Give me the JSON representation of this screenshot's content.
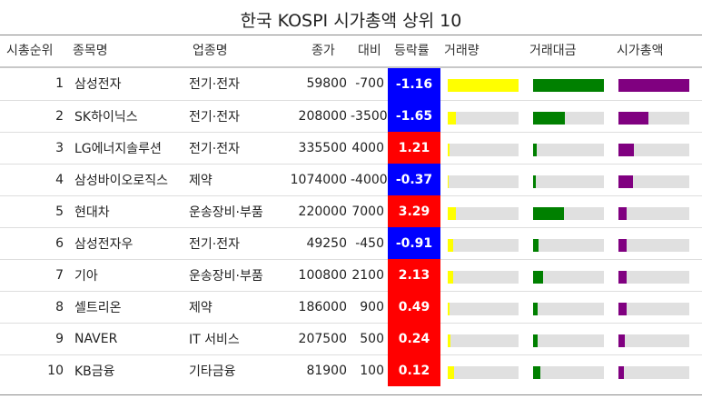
{
  "chart_data": {
    "type": "table",
    "title": "한국 KOSPI 시가총액 상위 10",
    "columns": [
      "시총순위",
      "종목명",
      "업종명",
      "종가",
      "대비",
      "등락률",
      "거래량",
      "거래대금",
      "시가총액"
    ],
    "rows": [
      {
        "rank": "1",
        "name": "삼성전자",
        "sector": "전기·전자",
        "close": "59800",
        "change": "-700",
        "rate": "-1.16",
        "volume": 1.0,
        "value": 1.0,
        "cap": 1.0
      },
      {
        "rank": "2",
        "name": "SK하이닉스",
        "sector": "전기·전자",
        "close": "208000",
        "change": "-3500",
        "rate": "-1.65",
        "volume": 0.12,
        "value": 0.45,
        "cap": 0.42
      },
      {
        "rank": "3",
        "name": "LG에너지솔루션",
        "sector": "전기·전자",
        "close": "335500",
        "change": "4000",
        "rate": "1.21",
        "volume": 0.02,
        "value": 0.05,
        "cap": 0.22
      },
      {
        "rank": "4",
        "name": "삼성바이오로직스",
        "sector": "제약",
        "close": "1074000",
        "change": "-4000",
        "rate": "-0.37",
        "volume": 0.01,
        "value": 0.04,
        "cap": 0.2
      },
      {
        "rank": "5",
        "name": "현대차",
        "sector": "운송장비·부품",
        "close": "220000",
        "change": "7000",
        "rate": "3.29",
        "volume": 0.11,
        "value": 0.44,
        "cap": 0.12
      },
      {
        "rank": "6",
        "name": "삼성전자우",
        "sector": "전기·전자",
        "close": "49250",
        "change": "-450",
        "rate": "-0.91",
        "volume": 0.08,
        "value": 0.08,
        "cap": 0.11
      },
      {
        "rank": "7",
        "name": "기아",
        "sector": "운송장비·부품",
        "close": "100800",
        "change": "2100",
        "rate": "2.13",
        "volume": 0.08,
        "value": 0.14,
        "cap": 0.11
      },
      {
        "rank": "8",
        "name": "셀트리온",
        "sector": "제약",
        "close": "186000",
        "change": "900",
        "rate": "0.49",
        "volume": 0.03,
        "value": 0.06,
        "cap": 0.11
      },
      {
        "rank": "9",
        "name": "NAVER",
        "sector": "IT 서비스",
        "close": "207500",
        "change": "500",
        "rate": "0.24",
        "volume": 0.04,
        "value": 0.06,
        "cap": 0.09
      },
      {
        "rank": "10",
        "name": "KB금융",
        "sector": "기타금융",
        "close": "81900",
        "change": "100",
        "rate": "0.12",
        "volume": 0.09,
        "value": 0.1,
        "cap": 0.08
      }
    ],
    "bar_scale": "fraction of column maximum",
    "colors": {
      "rate_up": "#ff0000",
      "rate_down": "#0000ff",
      "volume_bar": "#ffff00",
      "value_bar": "#008000",
      "cap_bar": "#800080",
      "bar_track": "#e0e0e0"
    }
  }
}
